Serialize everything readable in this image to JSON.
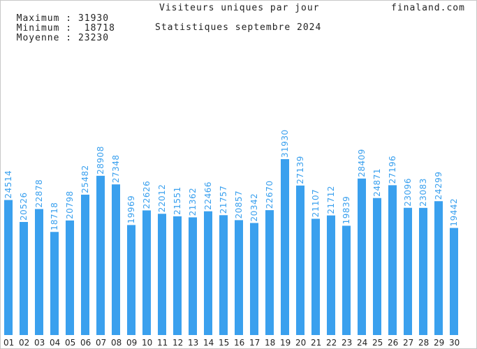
{
  "header": {
    "max_label": "Maximum",
    "max_value": "31930",
    "min_label": "Minimum",
    "min_value": "18718",
    "avg_label": "Moyenne",
    "avg_value": "23230",
    "separator": ":",
    "title": "Visiteurs uniques par jour",
    "subtitle": "Statistiques septembre 2024",
    "site": "finaland.com"
  },
  "chart_data": {
    "type": "bar",
    "title": "Visiteurs uniques par jour",
    "subtitle": "Statistiques septembre 2024",
    "categories": [
      "01",
      "02",
      "03",
      "04",
      "05",
      "06",
      "07",
      "08",
      "09",
      "10",
      "11",
      "12",
      "13",
      "14",
      "15",
      "16",
      "17",
      "18",
      "19",
      "20",
      "21",
      "22",
      "23",
      "24",
      "25",
      "26",
      "27",
      "28",
      "29",
      "30"
    ],
    "values": [
      24514,
      20526,
      22878,
      18718,
      20798,
      25482,
      28908,
      27348,
      19969,
      22626,
      22012,
      21551,
      21362,
      22466,
      21757,
      20857,
      20342,
      22670,
      31930,
      27139,
      21107,
      21712,
      19839,
      28409,
      24871,
      27196,
      23096,
      23083,
      24299,
      19442
    ],
    "ylim": [
      0,
      31930
    ],
    "bar_color": "#3aa0ee",
    "label_color": "#3aa0ee",
    "grid": false,
    "legend": "none"
  }
}
